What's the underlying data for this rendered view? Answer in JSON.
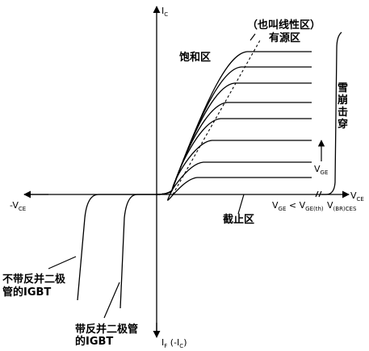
{
  "axes": {
    "y_top": {
      "main": "I",
      "sub": "C"
    },
    "y_bottom": {
      "main": "I",
      "sub_f": "F",
      "rest": " (-I",
      "sub_c": "C",
      "close": ")"
    },
    "x_right": {
      "main": "V",
      "sub": "CE"
    },
    "x_left": {
      "prefix": "-V",
      "sub": "CE"
    }
  },
  "regions": {
    "saturation": "饱和区",
    "active_note": "（也叫线性区）",
    "active": "有源区",
    "cutoff": "截止区",
    "avalanche_chars": [
      "雪",
      "崩",
      "击",
      "穿"
    ]
  },
  "annotations": {
    "vge": {
      "main": "V",
      "sub": "GE"
    },
    "cutoff_condition": {
      "v1": "V",
      "s1": "GE",
      "lt": " < V",
      "s2": "GE(th)"
    },
    "breakdown": {
      "main": "V",
      "sub": "(BR)CES"
    },
    "igbt_without_diode": [
      "不带反并二极",
      "管的IGBT"
    ],
    "igbt_with_diode": [
      "带反并二极管",
      "的IGBT"
    ]
  },
  "curve_count": 8
}
